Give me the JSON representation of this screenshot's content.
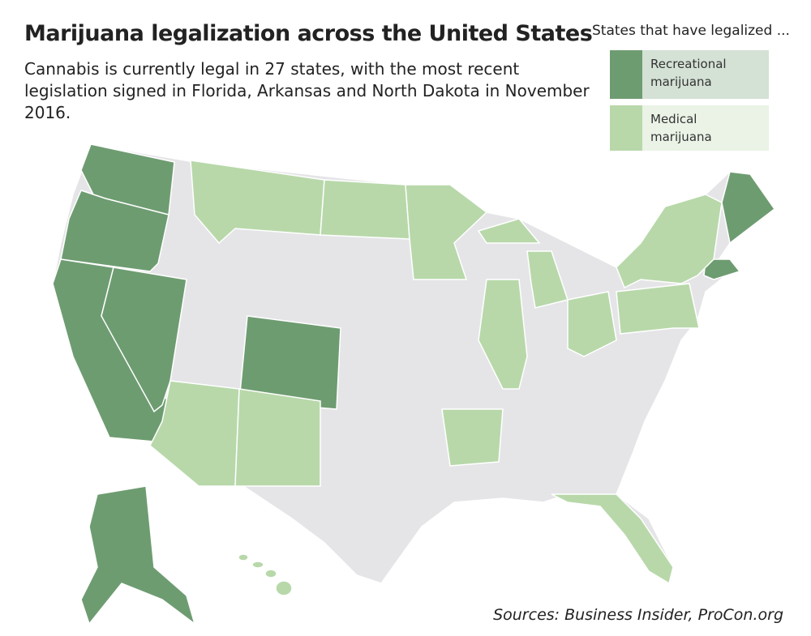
{
  "title": "Marijuana legalization across the United States",
  "subtitle": "Cannabis is currently legal in 27 states, with the most recent legislation signed in Florida, Arkansas and North Dakota in November 2016.",
  "legend": {
    "title": "States that have legalized ...",
    "items": [
      {
        "label": "Recreational marijuana",
        "color": "#6e9c71"
      },
      {
        "label": "Medical marijuana",
        "color": "#b8d8aa"
      }
    ]
  },
  "source": "Sources: Business Insider, ProCon.org"
}
